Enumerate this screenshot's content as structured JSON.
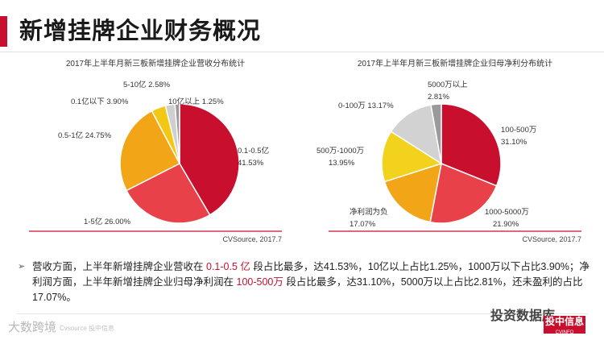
{
  "page": {
    "title": "新增挂牌企业财务概况",
    "summary_parts": [
      "营收方面，上半年新增挂牌企业营收在",
      "0.1-0.5 亿",
      "段占比最多，达41.53%，10亿以上占比1.25%，1000万以下占比3.90%；净利润方面，上半年新增挂牌企业归母净利润在",
      "100-500万",
      "段占比最多，达31.10%，5000万以上占比2.81%，还未盈利的占比17.07%。"
    ],
    "watermark_left": "大数跨境",
    "watermark_left_small": "Cvsource 投中信息",
    "watermark_right": "投资数据库",
    "logo_text": "投中信息",
    "logo_sub": "CVINFO"
  },
  "chart_data": [
    {
      "type": "pie",
      "title": "2017年上半年月新三板新增挂牌企业营收分布统计",
      "source": "CVSource, 2017.7",
      "start_angle_deg": 0,
      "labels": [
        "0.1-0.5亿",
        "1-5亿",
        "0.5-1亿",
        "0.1亿以下",
        "5-10亿",
        "10亿以上"
      ],
      "values": [
        41.53,
        26.0,
        24.75,
        3.9,
        2.58,
        1.25
      ],
      "display": [
        "41.53%",
        "26.00%",
        "24.75%",
        "3.90%",
        "2.58%",
        "1.25%"
      ],
      "label_lines": [
        [
          "0.1-0.5亿",
          "41.53%"
        ],
        [
          "1-5亿 26.00%"
        ],
        [
          "0.5-1亿 24.75%"
        ],
        [
          "0.1亿以下 3.90%"
        ],
        [
          "5-10亿 2.58%"
        ],
        [
          "10亿以上 1.25%"
        ]
      ],
      "colors": [
        "#c8102e",
        "#e8414a",
        "#f2a516",
        "#f2c814",
        "#cfcfcf",
        "#9a9a9a"
      ]
    },
    {
      "type": "pie",
      "title": "2017年上半年月新三板新增挂牌企业归母净利分布统计",
      "source": "CVSource, 2017.7",
      "start_angle_deg": 0,
      "labels": [
        "100-500万",
        "1000-5000万",
        "净利润为负",
        "500万-1000万",
        "0-100万",
        "5000万以上"
      ],
      "values": [
        31.1,
        21.9,
        17.07,
        13.95,
        13.17,
        2.81
      ],
      "display": [
        "31.10%",
        "21.90%",
        "17.07%",
        "13.95%",
        "13.17%",
        "2.81%"
      ],
      "label_lines": [
        [
          "100-500万",
          "31.10%"
        ],
        [
          "1000-5000万",
          "21.90%"
        ],
        [
          "净利润为负",
          "17.07%"
        ],
        [
          "500万-1000万",
          "13.95%"
        ],
        [
          "0-100万 13.17%"
        ],
        [
          "5000万以上",
          "2.81%"
        ]
      ],
      "colors": [
        "#c8102e",
        "#e8414a",
        "#f2a516",
        "#f2d21c",
        "#d2d2d2",
        "#9a9a9a"
      ]
    }
  ]
}
